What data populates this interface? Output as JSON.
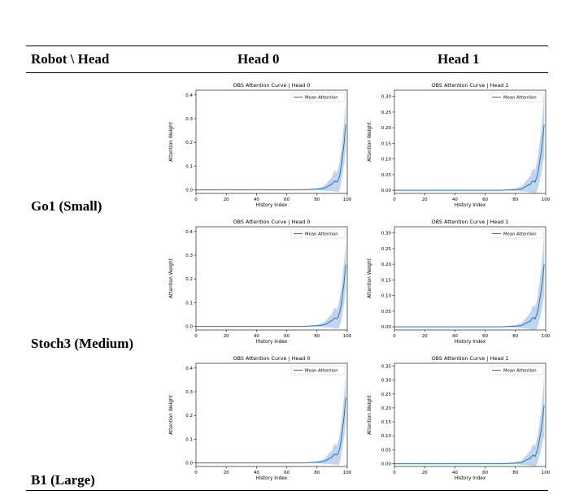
{
  "table": {
    "headers": [
      "Robot \\ Head",
      "Head 0",
      "Head 1"
    ],
    "rows": [
      "Go1 (Small)",
      "Stoch3 (Medium)",
      "B1 (Large)"
    ]
  },
  "chart_data": [
    {
      "type": "line",
      "panel": "Go1-Head0",
      "title": "OBS Attention Curve | Head 0",
      "xlabel": "History Index",
      "ylabel": "Attention Weight",
      "xlim": [
        0,
        100
      ],
      "ylim": [
        -0.015,
        0.42
      ],
      "xticks": [
        0,
        20,
        40,
        60,
        80,
        100
      ],
      "yticks": [
        0.0,
        0.1,
        0.2,
        0.3,
        0.4
      ],
      "ytick_labels": [
        "0.0",
        "0.1",
        "0.2",
        "0.3",
        "0.4"
      ],
      "legend_position": "upper-right",
      "grid": false,
      "series": [
        {
          "name": "Mean Attention",
          "color": "#1f77b4",
          "band_color": "#aec7e8",
          "x": [
            0,
            70,
            80,
            84,
            86,
            88,
            90,
            91,
            92,
            93,
            94,
            95,
            96,
            97,
            98,
            99
          ],
          "values": [
            0.0,
            0.0,
            0.003,
            0.006,
            0.01,
            0.018,
            0.025,
            0.034,
            0.037,
            0.033,
            0.04,
            0.06,
            0.1,
            0.15,
            0.2,
            0.275
          ],
          "band": [
            0.0,
            0.0,
            0.004,
            0.009,
            0.015,
            0.022,
            0.03,
            0.04,
            0.045,
            0.04,
            0.05,
            0.06,
            0.07,
            0.08,
            0.09,
            0.1
          ]
        }
      ]
    },
    {
      "type": "line",
      "panel": "Go1-Head1",
      "title": "OBS Attention Curve | Head 1",
      "xlabel": "History Index",
      "ylabel": "Attention Weight",
      "xlim": [
        0,
        100
      ],
      "ylim": [
        -0.01,
        0.32
      ],
      "xticks": [
        0,
        20,
        40,
        60,
        80,
        100
      ],
      "yticks": [
        0.0,
        0.05,
        0.1,
        0.15,
        0.2,
        0.25,
        0.3
      ],
      "ytick_labels": [
        "0.00",
        "0.05",
        "0.10",
        "0.15",
        "0.20",
        "0.25",
        "0.30"
      ],
      "legend_position": "upper-right",
      "grid": false,
      "series": [
        {
          "name": "Mean Attention",
          "color": "#1f77b4",
          "band_color": "#aec7e8",
          "x": [
            0,
            70,
            80,
            84,
            86,
            88,
            90,
            91,
            92,
            93,
            94,
            95,
            96,
            97,
            98,
            99
          ],
          "values": [
            0.0,
            0.0,
            0.002,
            0.004,
            0.01,
            0.015,
            0.02,
            0.028,
            0.03,
            0.026,
            0.04,
            0.06,
            0.09,
            0.12,
            0.16,
            0.21
          ],
          "band": [
            0.0,
            0.0,
            0.004,
            0.008,
            0.014,
            0.02,
            0.028,
            0.035,
            0.04,
            0.038,
            0.045,
            0.05,
            0.06,
            0.07,
            0.08,
            0.1
          ]
        }
      ]
    },
    {
      "type": "line",
      "panel": "Stoch3-Head0",
      "title": "OBS Attention Curve | Head 0",
      "xlabel": "History Index",
      "ylabel": "Attention Weight",
      "xlim": [
        0,
        100
      ],
      "ylim": [
        -0.015,
        0.42
      ],
      "xticks": [
        0,
        20,
        40,
        60,
        80,
        100
      ],
      "yticks": [
        0.0,
        0.1,
        0.2,
        0.3,
        0.4
      ],
      "ytick_labels": [
        "0.0",
        "0.1",
        "0.2",
        "0.3",
        "0.4"
      ],
      "legend_position": "upper-right",
      "grid": false,
      "series": [
        {
          "name": "Mean Attention",
          "color": "#1f77b4",
          "band_color": "#aec7e8",
          "x": [
            0,
            70,
            80,
            84,
            86,
            88,
            90,
            91,
            92,
            93,
            94,
            95,
            96,
            97,
            98,
            99
          ],
          "values": [
            0.0,
            0.0,
            0.003,
            0.006,
            0.01,
            0.018,
            0.025,
            0.032,
            0.035,
            0.032,
            0.04,
            0.06,
            0.09,
            0.14,
            0.19,
            0.26
          ],
          "band": [
            0.0,
            0.0,
            0.004,
            0.009,
            0.015,
            0.022,
            0.03,
            0.04,
            0.045,
            0.04,
            0.05,
            0.06,
            0.07,
            0.08,
            0.09,
            0.1
          ]
        }
      ]
    },
    {
      "type": "line",
      "panel": "Stoch3-Head1",
      "title": "OBS Attention Curve | Head 1",
      "xlabel": "History Index",
      "ylabel": "Attention Weight",
      "xlim": [
        0,
        100
      ],
      "ylim": [
        -0.01,
        0.32
      ],
      "xticks": [
        0,
        20,
        40,
        60,
        80,
        100
      ],
      "yticks": [
        0.0,
        0.05,
        0.1,
        0.15,
        0.2,
        0.25,
        0.3
      ],
      "ytick_labels": [
        "0.00",
        "0.05",
        "0.10",
        "0.15",
        "0.20",
        "0.25",
        "0.30"
      ],
      "legend_position": "upper-right",
      "grid": false,
      "series": [
        {
          "name": "Mean Attention",
          "color": "#1f77b4",
          "band_color": "#aec7e8",
          "x": [
            0,
            70,
            80,
            84,
            86,
            88,
            90,
            91,
            92,
            93,
            94,
            95,
            96,
            97,
            98,
            99
          ],
          "values": [
            0.0,
            0.0,
            0.002,
            0.004,
            0.009,
            0.014,
            0.019,
            0.026,
            0.03,
            0.025,
            0.038,
            0.055,
            0.085,
            0.115,
            0.15,
            0.2
          ],
          "band": [
            0.0,
            0.0,
            0.004,
            0.008,
            0.014,
            0.02,
            0.028,
            0.035,
            0.04,
            0.038,
            0.045,
            0.05,
            0.06,
            0.07,
            0.08,
            0.1
          ]
        }
      ]
    },
    {
      "type": "line",
      "panel": "B1-Head0",
      "title": "OBS Attention Curve | Head 0",
      "xlabel": "History Index",
      "ylabel": "Attention Weight",
      "xlim": [
        0,
        100
      ],
      "ylim": [
        -0.015,
        0.42
      ],
      "xticks": [
        0,
        20,
        40,
        60,
        80,
        100
      ],
      "yticks": [
        0.0,
        0.1,
        0.2,
        0.3,
        0.4
      ],
      "ytick_labels": [
        "0.0",
        "0.1",
        "0.2",
        "0.3",
        "0.4"
      ],
      "legend_position": "upper-right",
      "grid": false,
      "series": [
        {
          "name": "Mean Attention",
          "color": "#1f77b4",
          "band_color": "#aec7e8",
          "x": [
            0,
            70,
            80,
            84,
            86,
            88,
            90,
            91,
            92,
            93,
            94,
            95,
            96,
            97,
            98,
            99
          ],
          "values": [
            0.0,
            0.0,
            0.003,
            0.006,
            0.01,
            0.018,
            0.025,
            0.034,
            0.037,
            0.033,
            0.04,
            0.06,
            0.1,
            0.15,
            0.2,
            0.275
          ],
          "band": [
            0.0,
            0.0,
            0.004,
            0.009,
            0.015,
            0.022,
            0.03,
            0.04,
            0.045,
            0.04,
            0.05,
            0.06,
            0.07,
            0.08,
            0.09,
            0.1
          ]
        }
      ]
    },
    {
      "type": "line",
      "panel": "B1-Head1",
      "title": "OBS Attention Curve | Head 1",
      "xlabel": "History Index",
      "ylabel": "Attention Weight",
      "xlim": [
        0,
        100
      ],
      "ylim": [
        -0.01,
        0.36
      ],
      "xticks": [
        0,
        20,
        40,
        60,
        80,
        100
      ],
      "yticks": [
        0.0,
        0.05,
        0.1,
        0.15,
        0.2,
        0.25,
        0.3,
        0.35
      ],
      "ytick_labels": [
        "0.00",
        "0.05",
        "0.10",
        "0.15",
        "0.20",
        "0.25",
        "0.30",
        "0.35"
      ],
      "legend_position": "upper-right",
      "grid": false,
      "series": [
        {
          "name": "Mean Attention",
          "color": "#1f77b4",
          "band_color": "#aec7e8",
          "x": [
            0,
            70,
            80,
            84,
            86,
            88,
            90,
            91,
            92,
            93,
            94,
            95,
            96,
            97,
            98,
            99
          ],
          "values": [
            0.0,
            0.0,
            0.002,
            0.004,
            0.01,
            0.015,
            0.02,
            0.028,
            0.03,
            0.026,
            0.04,
            0.06,
            0.09,
            0.12,
            0.16,
            0.21
          ],
          "band": [
            0.0,
            0.0,
            0.004,
            0.008,
            0.014,
            0.02,
            0.028,
            0.035,
            0.04,
            0.038,
            0.045,
            0.05,
            0.06,
            0.07,
            0.08,
            0.11
          ]
        }
      ]
    }
  ]
}
